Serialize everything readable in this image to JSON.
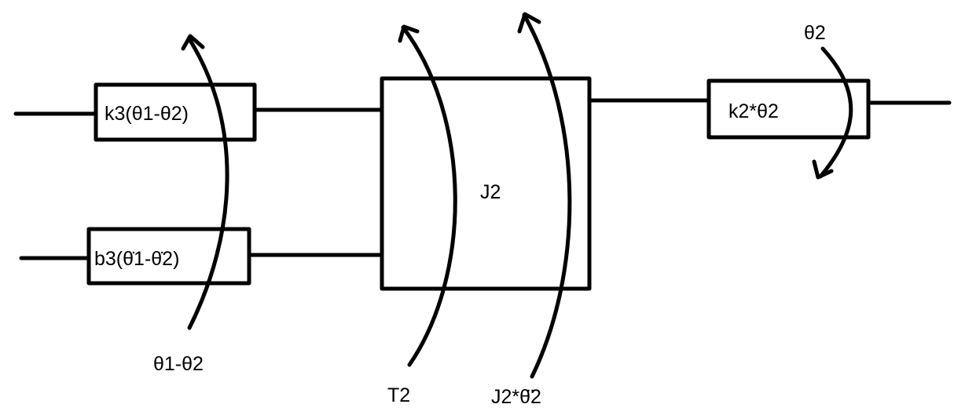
{
  "blocks": {
    "k3": {
      "label": "k3(θ1-θ2)"
    },
    "b3": {
      "label": "b3(θ̇1-θ̇2)"
    },
    "j2": {
      "label": "J2"
    },
    "k2": {
      "label": "k2*θ2"
    }
  },
  "arrows": {
    "theta_diff": {
      "label": "θ1-θ2"
    },
    "t2": {
      "label": "T2"
    },
    "j2_accel": {
      "label": "J2*θ̈2"
    },
    "theta2": {
      "label": "θ2"
    }
  },
  "colors": {
    "stroke": "#000000",
    "background": "#ffffff"
  }
}
